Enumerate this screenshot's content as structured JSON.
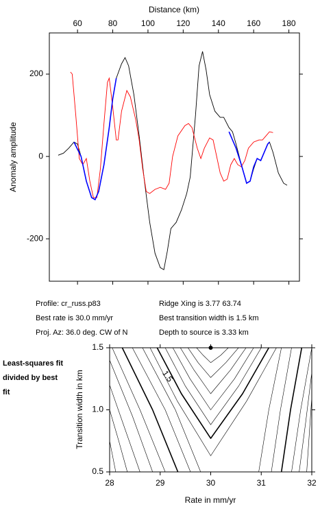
{
  "chart_data": [
    {
      "type": "line",
      "xlabel": "Distance (km)",
      "ylabel": "Anomaly amplitude",
      "xlim": [
        44,
        186
      ],
      "ylim": [
        -303,
        300
      ],
      "xticks": [
        60,
        80,
        100,
        120,
        140,
        160,
        180
      ],
      "yticks": [
        -200,
        0,
        200
      ],
      "series": [
        {
          "color": "#000000",
          "x": [
            49,
            52,
            55,
            58,
            60,
            62,
            65,
            68,
            70,
            72,
            75,
            78,
            80,
            82,
            85,
            87,
            89,
            92,
            95,
            98,
            101,
            104,
            107,
            109,
            111,
            113,
            116,
            119,
            122,
            124,
            127,
            129,
            131,
            133,
            135,
            138,
            141,
            143,
            146,
            148,
            150,
            153,
            156,
            158,
            160,
            162,
            164,
            166,
            168,
            169,
            171,
            174,
            177,
            179
          ],
          "values": [
            3,
            8,
            20,
            35,
            30,
            0,
            -60,
            -100,
            -105,
            -85,
            -20,
            70,
            140,
            190,
            225,
            240,
            220,
            150,
            50,
            -60,
            -160,
            -235,
            -270,
            -275,
            -230,
            -175,
            -160,
            -130,
            -90,
            -50,
            100,
            220,
            255,
            210,
            150,
            110,
            95,
            95,
            70,
            60,
            30,
            -20,
            -65,
            -60,
            -30,
            -5,
            -10,
            10,
            30,
            35,
            10,
            -40,
            -65,
            -70
          ]
        },
        {
          "color": "#ff0000",
          "x": [
            56,
            57,
            59,
            61,
            63,
            65,
            67,
            69,
            71,
            73,
            75,
            77,
            78,
            80,
            82,
            83,
            85,
            88,
            90,
            93,
            95,
            97,
            99,
            101,
            104,
            107,
            110,
            112,
            114,
            117,
            121,
            123,
            125,
            128,
            130,
            132,
            135,
            137,
            139,
            141,
            143,
            145,
            147,
            149,
            151,
            153,
            155,
            157,
            160,
            163,
            165,
            167,
            169,
            171
          ],
          "values": [
            205,
            200,
            100,
            -5,
            -20,
            -5,
            -60,
            -100,
            -100,
            -30,
            80,
            180,
            190,
            120,
            40,
            40,
            110,
            160,
            145,
            90,
            40,
            -30,
            -85,
            -90,
            -80,
            -75,
            -80,
            -65,
            0,
            50,
            75,
            80,
            70,
            20,
            -5,
            20,
            45,
            40,
            0,
            -40,
            -60,
            -55,
            -20,
            -5,
            -20,
            -25,
            -10,
            20,
            35,
            40,
            40,
            50,
            60,
            58
          ]
        },
        {
          "color": "#0000ff",
          "x": [
            58,
            62,
            65,
            68,
            70,
            72,
            75,
            78,
            80,
            82
          ],
          "values": [
            35,
            0,
            -60,
            -100,
            -105,
            -85,
            -20,
            70,
            140,
            190
          ]
        },
        {
          "color": "#0000ff",
          "x": [
            146,
            150,
            153,
            156,
            158,
            160,
            162,
            164,
            166,
            168,
            169
          ],
          "values": [
            60,
            20,
            -20,
            -65,
            -60,
            -25,
            -5,
            -10,
            10,
            30,
            35
          ]
        }
      ],
      "annotations": [
        "Profile: cr_russ.p83",
        "Best rate is 30.0 mm/yr",
        "Proj. Az: 36.0 deg. CW of N",
        "Ridge Xing is 3.77 63.74",
        "Best transition width is 1.5 km",
        "Depth to source is   3.33 km"
      ]
    },
    {
      "type": "contour",
      "title": "Least-squares fit divided by best fit",
      "xlabel": "Rate in mm/yr",
      "ylabel": "Transition width in km",
      "xlim": [
        28,
        32
      ],
      "ylim": [
        0.5,
        1.5
      ],
      "xticks": [
        28,
        29,
        30,
        31,
        32
      ],
      "yticks": [
        0.5,
        {
          "value": 1,
          "label": "1.0"
        },
        1.5
      ],
      "contour_label": "1.5",
      "best_fit": {
        "x": 30,
        "y": 1.5
      },
      "contours": [
        {
          "x": [
            29.72,
            29.85,
            30,
            30.2,
            30.35
          ],
          "y": [
            1.5,
            1.44,
            1.38,
            1.44,
            1.5
          ]
        },
        {
          "x": [
            29.55,
            29.75,
            30,
            30.3,
            30.55
          ],
          "y": [
            1.5,
            1.38,
            1.26,
            1.38,
            1.5
          ]
        },
        {
          "x": [
            29.4,
            29.67,
            30,
            30.39,
            30.7
          ],
          "y": [
            1.5,
            1.32,
            1.13,
            1.32,
            1.5
          ]
        },
        {
          "x": [
            29.25,
            29.59,
            30,
            30.47,
            30.85
          ],
          "y": [
            1.5,
            1.25,
            1.0,
            1.25,
            1.5
          ]
        },
        {
          "x": [
            29.1,
            29.5,
            30,
            30.55,
            31.0
          ],
          "y": [
            1.5,
            1.19,
            0.88,
            1.19,
            1.5
          ]
        },
        {
          "x": [
            28.94,
            29.42,
            30,
            30.63,
            31.15
          ],
          "y": [
            1.5,
            1.13,
            0.77,
            1.13,
            1.5
          ],
          "bold": true
        },
        {
          "x": [
            28.8,
            29.34,
            30,
            30.71,
            31.3
          ],
          "y": [
            1.5,
            1.07,
            0.63,
            1.07,
            1.5
          ]
        },
        {
          "x": [
            28.65,
            29.3,
            29.8
          ],
          "y": [
            1.5,
            1.0,
            0.5
          ]
        },
        {
          "x": [
            28.45,
            29.1,
            29.6
          ],
          "y": [
            1.5,
            1.0,
            0.5
          ]
        },
        {
          "x": [
            28.25,
            28.85,
            29.35
          ],
          "y": [
            1.5,
            1.0,
            0.5
          ],
          "bold": true
        },
        {
          "x": [
            28.05,
            28.6,
            29.1
          ],
          "y": [
            1.5,
            1.0,
            0.5
          ]
        },
        {
          "x": [
            28,
            28.45,
            28.85
          ],
          "y": [
            1.4,
            0.95,
            0.5
          ]
        },
        {
          "x": [
            28,
            28.3,
            28.6
          ],
          "y": [
            1.2,
            0.85,
            0.5
          ]
        },
        {
          "x": [
            28,
            28.18,
            28.35
          ],
          "y": [
            1.0,
            0.75,
            0.5
          ]
        },
        {
          "x": [
            28,
            28.12
          ],
          "y": [
            0.75,
            0.5
          ]
        },
        {
          "x": [
            31.4,
            31.15,
            30.95
          ],
          "y": [
            1.5,
            1.0,
            0.5
          ]
        },
        {
          "x": [
            31.6,
            31.38,
            31.2
          ],
          "y": [
            1.5,
            1.0,
            0.5
          ]
        },
        {
          "x": [
            31.8,
            31.58,
            31.4
          ],
          "y": [
            1.5,
            1.0,
            0.5
          ],
          "bold": true
        },
        {
          "x": [
            32,
            31.78,
            31.6
          ],
          "y": [
            1.5,
            1.0,
            0.5
          ]
        },
        {
          "x": [
            32,
            31.88,
            31.75
          ],
          "y": [
            1.3,
            0.9,
            0.5
          ]
        },
        {
          "x": [
            32,
            31.95,
            31.9
          ],
          "y": [
            1.1,
            0.8,
            0.5
          ]
        }
      ]
    }
  ]
}
